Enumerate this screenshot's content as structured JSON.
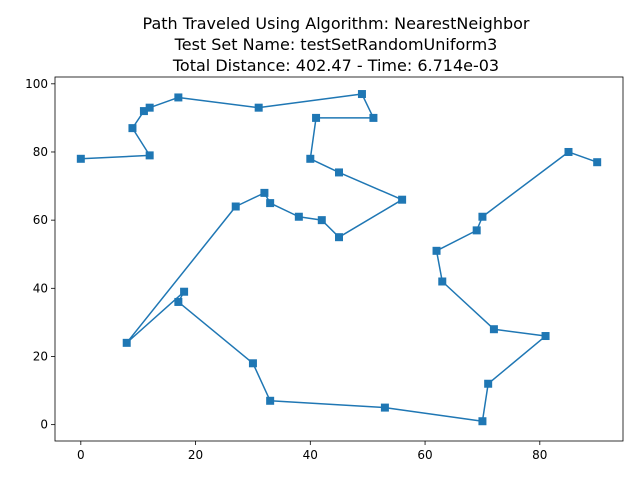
{
  "chart_data": {
    "type": "line",
    "title_lines": [
      "Path Traveled Using Algorithm: NearestNeighbor",
      "Test Set Name: testSetRandomUniform3",
      "Total Distance: 402.47 - Time: 6.714e-03"
    ],
    "xlabel": "",
    "ylabel": "",
    "xlim": [
      -4.5,
      94.5
    ],
    "ylim": [
      -4.8,
      102
    ],
    "xticks": [
      0,
      20,
      40,
      60,
      80
    ],
    "yticks": [
      0,
      20,
      40,
      60,
      80,
      100
    ],
    "grid": false,
    "legend": "none",
    "series": [
      {
        "marker": "square",
        "color": "#1f77b4",
        "points": [
          [
            0,
            78
          ],
          [
            12,
            79
          ],
          [
            9,
            87
          ],
          [
            11,
            92
          ],
          [
            12,
            93
          ],
          [
            17,
            96
          ],
          [
            31,
            93
          ],
          [
            49,
            97
          ],
          [
            51,
            90
          ],
          [
            41,
            90
          ],
          [
            40,
            78
          ],
          [
            45,
            74
          ],
          [
            56,
            66
          ],
          [
            45,
            55
          ],
          [
            42,
            60
          ],
          [
            38,
            61
          ],
          [
            33,
            65
          ],
          [
            32,
            68
          ],
          [
            27,
            64
          ],
          [
            8,
            24
          ],
          [
            18,
            39
          ],
          [
            17,
            36
          ],
          [
            30,
            18
          ],
          [
            33,
            7
          ],
          [
            53,
            5
          ],
          [
            70,
            1
          ],
          [
            71,
            12
          ],
          [
            81,
            26
          ],
          [
            72,
            28
          ],
          [
            63,
            42
          ],
          [
            62,
            51
          ],
          [
            69,
            57
          ],
          [
            70,
            61
          ],
          [
            85,
            80
          ],
          [
            90,
            77
          ]
        ]
      }
    ]
  }
}
